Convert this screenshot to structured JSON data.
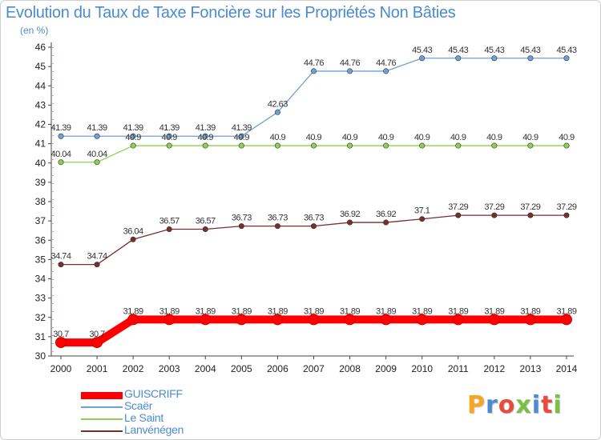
{
  "title": "Evolution du Taux de Taxe Foncière sur les Propriétés Non Bâties",
  "subtitle": "(en %)",
  "logo": {
    "text": "Proxiti",
    "colors": [
      "#f5a623",
      "#4b8bd1",
      "#e94b3c",
      "#7ac143",
      "#4b8bd1",
      "#e94b3c",
      "#7ac143"
    ]
  },
  "chart_data": {
    "type": "line",
    "title": "Evolution du Taux de Taxe Foncière sur les Propriétés Non Bâties",
    "ylabel": "(en %)",
    "xlabel": "",
    "x": [
      "2000",
      "2001",
      "2002",
      "2003",
      "2004",
      "2005",
      "2006",
      "2007",
      "2008",
      "2009",
      "2010",
      "2011",
      "2012",
      "2013",
      "2014"
    ],
    "ylim": [
      30,
      46
    ],
    "yticks": [
      30,
      31,
      32,
      33,
      34,
      35,
      36,
      37,
      38,
      39,
      40,
      41,
      42,
      43,
      44,
      45,
      46
    ],
    "grid": false,
    "legend": "bottom-left",
    "series": [
      {
        "name": "GUISCRIFF",
        "color": "#ff0000",
        "values": [
          30.7,
          30.7,
          31.89,
          31.89,
          31.89,
          31.89,
          31.89,
          31.89,
          31.89,
          31.89,
          31.89,
          31.89,
          31.89,
          31.89,
          31.89
        ],
        "labels": [
          "30.7",
          "30.7",
          "31.89",
          "31.89",
          "31.89",
          "31.89",
          "31.89",
          "31.89",
          "31.89",
          "31.89",
          "31.89",
          "31.89",
          "31.89",
          "31.89",
          "31.89"
        ]
      },
      {
        "name": "Scaër",
        "color": "#6fa1d6",
        "values": [
          41.39,
          41.39,
          41.39,
          41.39,
          41.39,
          41.39,
          42.63,
          44.76,
          44.76,
          44.76,
          45.43,
          45.43,
          45.43,
          45.43,
          45.43
        ],
        "labels": [
          "41.39",
          "41.39",
          "41.39",
          "41.39",
          "41.39",
          "41.39",
          "42.63",
          "44.76",
          "44.76",
          "44.76",
          "45.43",
          "45.43",
          "45.43",
          "45.43",
          "45.43"
        ]
      },
      {
        "name": "Le Saint",
        "color": "#8fd04e",
        "values": [
          40.04,
          40.04,
          40.9,
          40.9,
          40.9,
          40.9,
          40.9,
          40.9,
          40.9,
          40.9,
          40.9,
          40.9,
          40.9,
          40.9,
          40.9
        ],
        "labels": [
          "40.04",
          "40.04",
          "40.9",
          "40.9",
          "40.9",
          "40.9",
          "40.9",
          "40.9",
          "40.9",
          "40.9",
          "40.9",
          "40.9",
          "40.9",
          "40.9",
          "40.9"
        ]
      },
      {
        "name": "Lanvénégen",
        "color": "#7a2e2e",
        "values": [
          34.74,
          34.74,
          36.04,
          36.57,
          36.57,
          36.73,
          36.73,
          36.73,
          36.92,
          36.92,
          37.1,
          37.29,
          37.29,
          37.29,
          37.29
        ],
        "labels": [
          "34.74",
          "34.74",
          "36.04",
          "36.57",
          "36.57",
          "36.73",
          "36.73",
          "36.73",
          "36.92",
          "36.92",
          "37.1",
          "37.29",
          "37.29",
          "37.29",
          "37.29"
        ]
      }
    ]
  }
}
